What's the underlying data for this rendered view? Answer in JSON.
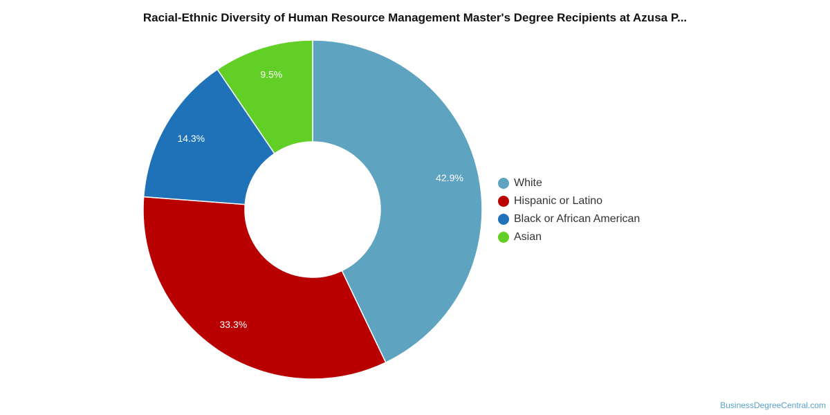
{
  "chart_data": {
    "type": "pie",
    "title": "Racial-Ethnic Diversity of Human Resource Management Master's Degree Recipients at Azusa P...",
    "donut": true,
    "legend_position": "right",
    "categories": [
      "White",
      "Hispanic or Latino",
      "Black or African American",
      "Asian"
    ],
    "values": [
      42.9,
      33.3,
      14.3,
      9.5
    ],
    "labels": [
      "42.9%",
      "33.3%",
      "14.3%",
      "9.5%"
    ],
    "colors": [
      "#5ea3c0",
      "#b80000",
      "#1f72b8",
      "#62cf26"
    ]
  },
  "footer": {
    "source": "BusinessDegreeCentral.com"
  }
}
